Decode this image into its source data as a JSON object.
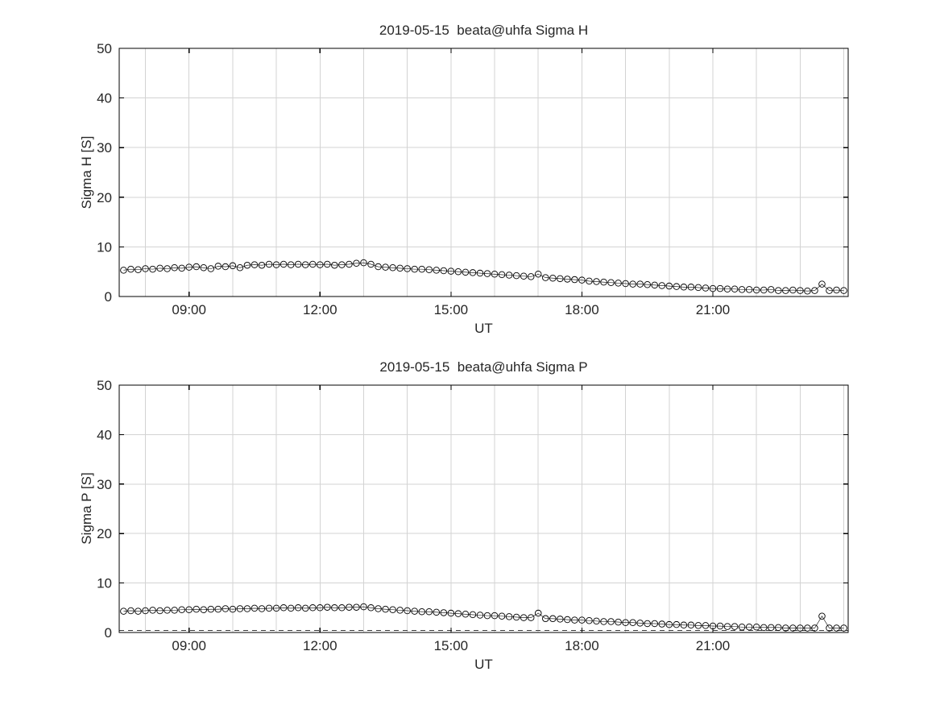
{
  "colors": {
    "background": "#ffffff",
    "marker": "#000000",
    "axis": "#000000",
    "grid": "#d3d3d3",
    "text": "#262626"
  },
  "chart_data": [
    {
      "type": "line",
      "title": "2019-05-15  beata@uhfa Sigma H",
      "xlabel": "UT",
      "ylabel": "Sigma H [S]",
      "ylim": [
        0,
        50
      ],
      "yticks": [
        0,
        10,
        20,
        30,
        40,
        50
      ],
      "xlim_hours": [
        7.4,
        24.1
      ],
      "xticks_hours": [
        9,
        12,
        15,
        18,
        21
      ],
      "xtick_labels": [
        "09:00",
        "12:00",
        "15:00",
        "18:00",
        "21:00"
      ],
      "grid": true,
      "minor_x_grid_every_hour": true,
      "marker": "circle",
      "x_start_hour": 7.5,
      "x_step_hours": 0.1666667,
      "values": [
        5.3,
        5.5,
        5.4,
        5.6,
        5.5,
        5.7,
        5.6,
        5.8,
        5.7,
        5.9,
        6.0,
        5.8,
        5.6,
        6.1,
        6.0,
        6.2,
        5.8,
        6.3,
        6.4,
        6.3,
        6.5,
        6.4,
        6.5,
        6.4,
        6.5,
        6.4,
        6.5,
        6.4,
        6.5,
        6.3,
        6.4,
        6.5,
        6.7,
        6.8,
        6.5,
        6.0,
        5.9,
        5.8,
        5.7,
        5.6,
        5.5,
        5.5,
        5.4,
        5.3,
        5.2,
        5.1,
        5.0,
        4.9,
        4.8,
        4.7,
        4.6,
        4.5,
        4.4,
        4.3,
        4.2,
        4.1,
        4.0,
        4.5,
        3.8,
        3.7,
        3.6,
        3.5,
        3.4,
        3.3,
        3.1,
        3.0,
        2.9,
        2.8,
        2.7,
        2.6,
        2.5,
        2.5,
        2.4,
        2.3,
        2.2,
        2.1,
        2.0,
        1.9,
        1.9,
        1.8,
        1.7,
        1.6,
        1.6,
        1.5,
        1.5,
        1.4,
        1.4,
        1.3,
        1.3,
        1.4,
        1.2,
        1.2,
        1.3,
        1.2,
        1.1,
        1.2,
        2.5,
        1.2,
        1.3,
        1.2
      ]
    },
    {
      "type": "line",
      "title": "2019-05-15  beata@uhfa Sigma P",
      "xlabel": "UT",
      "ylabel": "Sigma P [S]",
      "ylim": [
        0,
        50
      ],
      "yticks": [
        0,
        10,
        20,
        30,
        40,
        50
      ],
      "xlim_hours": [
        7.4,
        24.1
      ],
      "xticks_hours": [
        9,
        12,
        15,
        18,
        21
      ],
      "xtick_labels": [
        "09:00",
        "12:00",
        "15:00",
        "18:00",
        "21:00"
      ],
      "grid": true,
      "minor_x_grid_every_hour": true,
      "marker": "circle",
      "baseline": {
        "style": "dashed",
        "value": 0.4
      },
      "x_start_hour": 7.5,
      "x_step_hours": 0.1666667,
      "values": [
        4.3,
        4.4,
        4.3,
        4.4,
        4.5,
        4.4,
        4.5,
        4.5,
        4.6,
        4.6,
        4.7,
        4.6,
        4.7,
        4.7,
        4.8,
        4.7,
        4.8,
        4.8,
        4.9,
        4.8,
        4.9,
        4.9,
        5.0,
        4.9,
        5.0,
        4.9,
        5.0,
        5.0,
        5.1,
        5.0,
        5.0,
        5.1,
        5.1,
        5.2,
        5.0,
        4.8,
        4.7,
        4.6,
        4.5,
        4.4,
        4.3,
        4.2,
        4.2,
        4.1,
        4.0,
        3.9,
        3.8,
        3.7,
        3.6,
        3.5,
        3.4,
        3.4,
        3.3,
        3.2,
        3.1,
        3.0,
        3.0,
        3.9,
        2.8,
        2.8,
        2.7,
        2.6,
        2.5,
        2.5,
        2.4,
        2.3,
        2.2,
        2.2,
        2.1,
        2.0,
        2.0,
        1.9,
        1.8,
        1.8,
        1.7,
        1.6,
        1.6,
        1.5,
        1.5,
        1.4,
        1.4,
        1.3,
        1.3,
        1.2,
        1.2,
        1.1,
        1.1,
        1.1,
        1.0,
        1.0,
        1.0,
        0.9,
        0.9,
        0.9,
        0.9,
        0.9,
        3.3,
        0.9,
        0.9,
        0.9
      ]
    }
  ]
}
